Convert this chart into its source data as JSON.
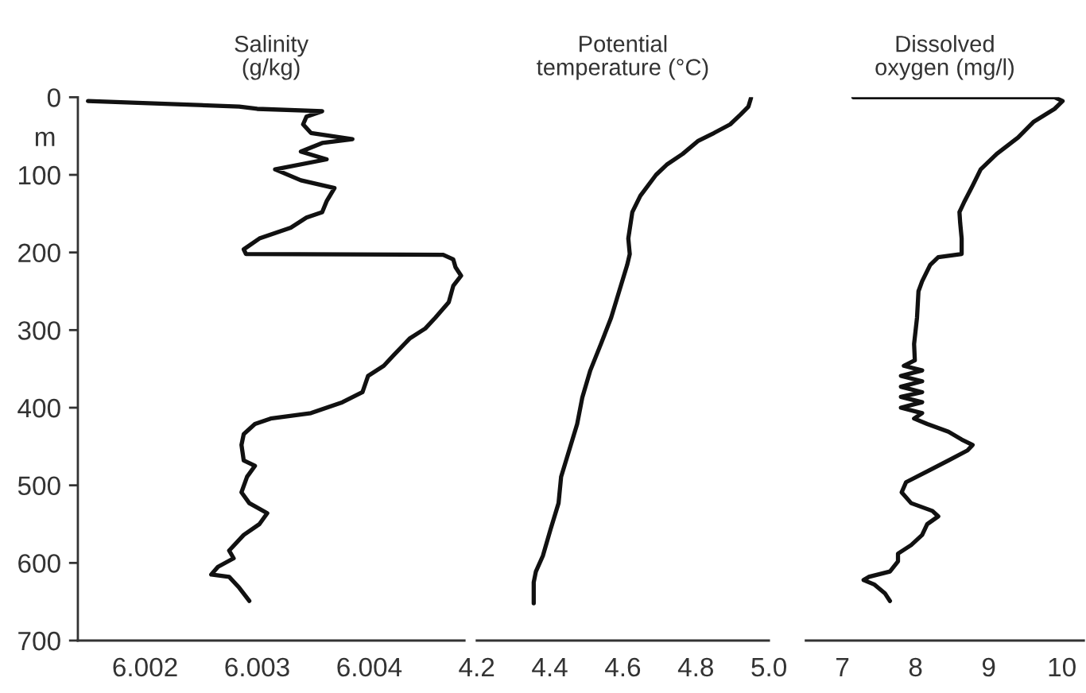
{
  "chart_data": [
    {
      "type": "line",
      "title": "Salinity\n(g/kg)",
      "ylabel": "m",
      "xlim": [
        6.0014,
        6.00485
      ],
      "xticks": [
        6.002,
        6.003,
        6.004
      ],
      "ylim": [
        700,
        0
      ],
      "yticks": [
        0,
        100,
        200,
        300,
        400,
        500,
        600,
        700
      ],
      "grid": false,
      "legend": false,
      "marker": "none",
      "line_style": "solid",
      "series": [
        {
          "color": "#111111",
          "x": [
            6.00149,
            6.00284,
            6.003,
            6.00358,
            6.00344,
            6.00341,
            6.00348,
            6.00385,
            6.00358,
            6.00339,
            6.00362,
            6.00316,
            6.00339,
            6.00369,
            6.00362,
            6.00358,
            6.00344,
            6.0033,
            6.00302,
            6.00288,
            6.0029,
            6.00466,
            6.00475,
            6.00477,
            6.00482,
            6.00475,
            6.00471,
            6.00459,
            6.0045,
            6.00436,
            6.00422,
            6.00413,
            6.00399,
            6.00394,
            6.00376,
            6.00348,
            6.00312,
            6.00298,
            6.00288,
            6.00286,
            6.00288,
            6.00298,
            6.00291,
            6.00286,
            6.00293,
            6.00309,
            6.00302,
            6.00288,
            6.00275,
            6.00279,
            6.00265,
            6.00259,
            6.00275,
            6.00284,
            6.00293
          ],
          "values": [
            5,
            12,
            15,
            18,
            25,
            35,
            46,
            54,
            59,
            70,
            80,
            93,
            107,
            117,
            134,
            148,
            155,
            168,
            182,
            196,
            202,
            203,
            209,
            219,
            230,
            243,
            264,
            284,
            298,
            311,
            332,
            346,
            359,
            380,
            393,
            407,
            414,
            421,
            434,
            448,
            468,
            475,
            489,
            509,
            523,
            536,
            550,
            564,
            584,
            594,
            605,
            615,
            618,
            632,
            649
          ]
        }
      ]
    },
    {
      "type": "line",
      "title": "Potential\ntemperature (°C)",
      "xlim": [
        4.2,
        5.0
      ],
      "xticks": [
        4.2,
        4.4,
        4.6,
        4.8,
        {
          "value": 5,
          "label": "5.0"
        }
      ],
      "ylim": [
        700,
        0
      ],
      "tick_labels": "x",
      "grid": false,
      "legend": false,
      "marker": "none",
      "line_style": "solid",
      "series": [
        {
          "color": "#111111",
          "x": [
            4.951,
            4.944,
            4.923,
            4.894,
            4.85,
            4.807,
            4.764,
            4.72,
            4.691,
            4.648,
            4.626,
            4.615,
            4.619,
            4.612,
            4.59,
            4.568,
            4.54,
            4.511,
            4.489,
            4.475,
            4.453,
            4.431,
            4.424,
            4.402,
            4.381,
            4.362,
            4.356,
            4.356
          ],
          "values": [
            1,
            12,
            22,
            35,
            46,
            56,
            73,
            87,
            100,
            127,
            148,
            182,
            202,
            216,
            250,
            284,
            318,
            352,
            387,
            421,
            455,
            489,
            523,
            557,
            591,
            611,
            625,
            652
          ]
        }
      ]
    },
    {
      "type": "line",
      "title": "Dissolved\noxygen (mg/l)",
      "xlim": [
        6.5,
        10.3
      ],
      "xticks": [
        7,
        8,
        9,
        10
      ],
      "ylim": [
        700,
        0
      ],
      "tick_labels": "x",
      "grid": false,
      "legend": false,
      "marker": "none",
      "line_style": "solid",
      "series": [
        {
          "color": "#111111",
          "x": [
            7.15,
            9.9,
            10.01,
            9.9,
            9.61,
            9.4,
            9.11,
            8.89,
            8.78,
            8.67,
            8.6,
            8.61,
            8.63,
            8.63,
            8.31,
            8.2,
            8.09,
            8.04,
            8.02,
            7.98,
            7.99,
            7.84,
            8.09,
            7.8,
            8.09,
            7.8,
            8.09,
            7.8,
            8.09,
            7.8,
            8.09,
            7.98,
            8.16,
            8.45,
            8.63,
            8.78,
            8.71,
            8.45,
            8.16,
            7.87,
            7.81,
            7.94,
            8.23,
            8.31,
            8.16,
            8.09,
            7.94,
            7.76,
            7.76,
            7.65,
            7.36,
            7.29,
            7.44,
            7.58,
            7.65
          ],
          "values": [
            0,
            0,
            5,
            15,
            32,
            52,
            73,
            93,
            114,
            134,
            148,
            162,
            182,
            202,
            206,
            216,
            237,
            250,
            284,
            318,
            339,
            346,
            352,
            359,
            366,
            373,
            380,
            386,
            393,
            400,
            407,
            414,
            421,
            431,
            441,
            448,
            455,
            468,
            482,
            496,
            509,
            523,
            533,
            540,
            550,
            564,
            577,
            588,
            598,
            611,
            618,
            622,
            628,
            639,
            649
          ]
        }
      ]
    }
  ]
}
